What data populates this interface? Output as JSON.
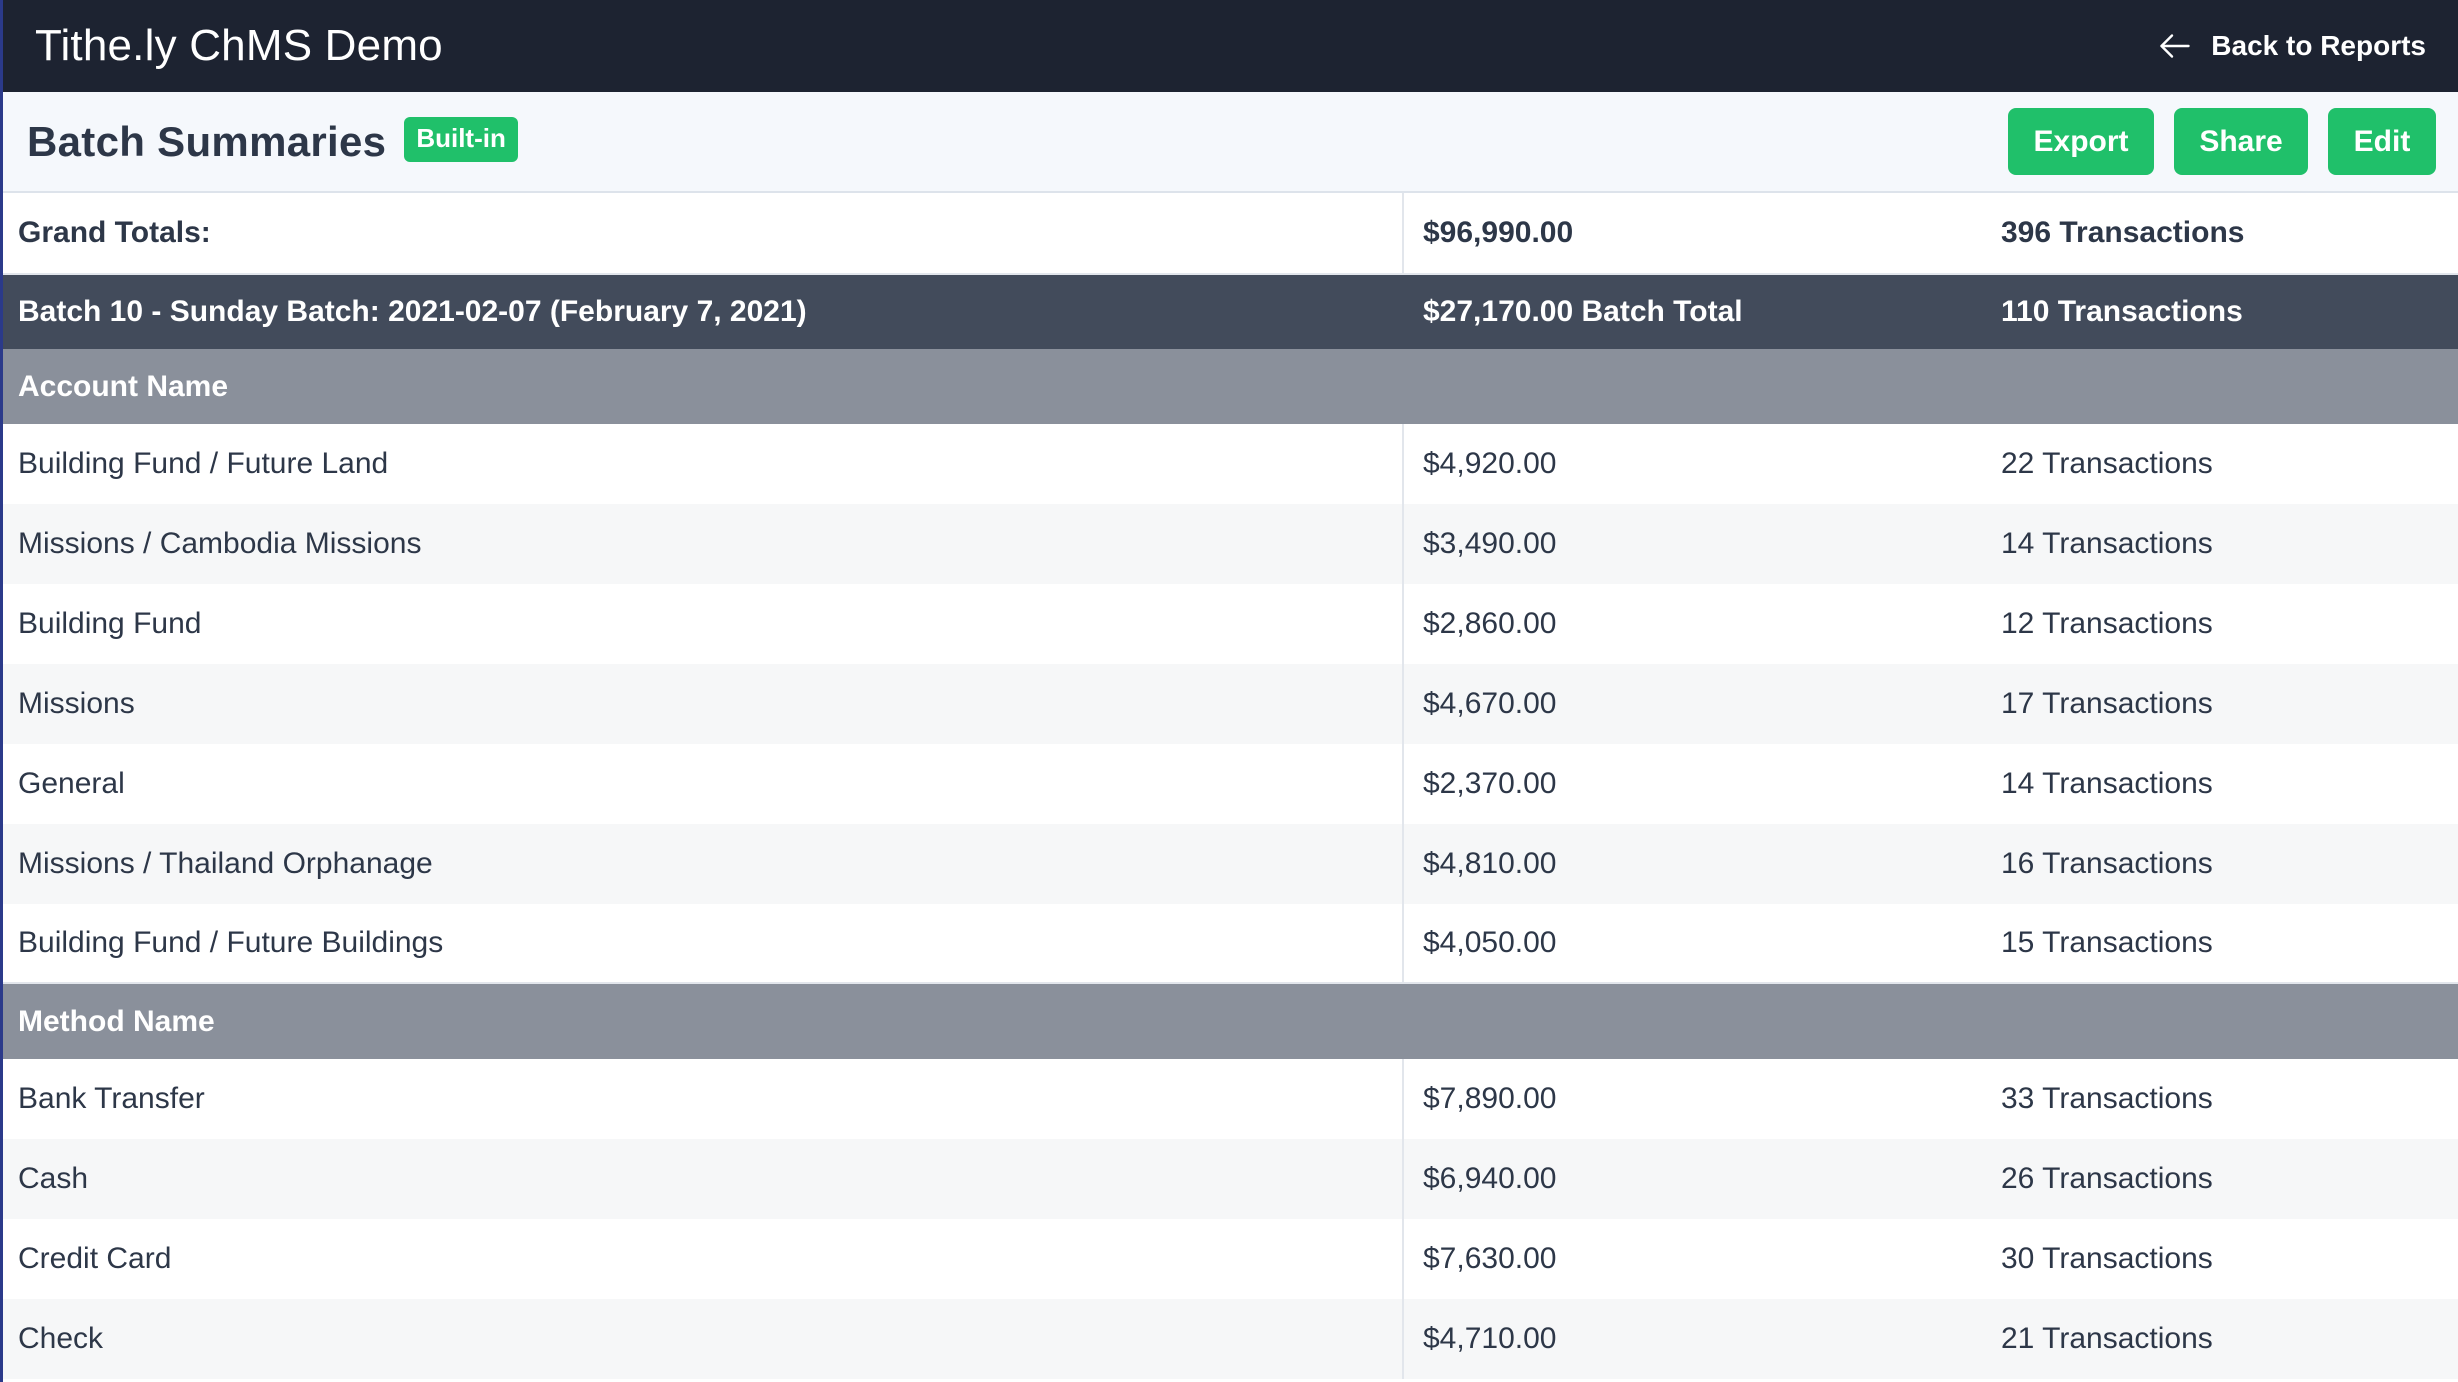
{
  "app": {
    "title": "Tithe.ly ChMS Demo",
    "back_label": "Back to Reports"
  },
  "header": {
    "title": "Batch Summaries",
    "badge": "Built-in",
    "export_label": "Export",
    "share_label": "Share",
    "edit_label": "Edit"
  },
  "grand": {
    "label": "Grand Totals:",
    "amount": "$96,990.00",
    "transactions": "396 Transactions"
  },
  "batch": {
    "label": "Batch 10 - Sunday Batch: 2021-02-07 (February 7, 2021)",
    "amount": "$27,170.00 Batch Total",
    "transactions": "110 Transactions"
  },
  "accounts": {
    "header": "Account Name",
    "rows": [
      {
        "name": "Building Fund / Future Land",
        "amount": "$4,920.00",
        "transactions": "22 Transactions"
      },
      {
        "name": "Missions / Cambodia Missions",
        "amount": "$3,490.00",
        "transactions": "14 Transactions"
      },
      {
        "name": "Building Fund",
        "amount": "$2,860.00",
        "transactions": "12 Transactions"
      },
      {
        "name": "Missions",
        "amount": "$4,670.00",
        "transactions": "17 Transactions"
      },
      {
        "name": "General",
        "amount": "$2,370.00",
        "transactions": "14 Transactions"
      },
      {
        "name": "Missions / Thailand Orphanage",
        "amount": "$4,810.00",
        "transactions": "16 Transactions"
      },
      {
        "name": "Building Fund / Future Buildings",
        "amount": "$4,050.00",
        "transactions": "15 Transactions"
      }
    ]
  },
  "methods": {
    "header": "Method Name",
    "rows": [
      {
        "name": "Bank Transfer",
        "amount": "$7,890.00",
        "transactions": "33 Transactions"
      },
      {
        "name": "Cash",
        "amount": "$6,940.00",
        "transactions": "26 Transactions"
      },
      {
        "name": "Credit Card",
        "amount": "$7,630.00",
        "transactions": "30 Transactions"
      },
      {
        "name": "Check",
        "amount": "$4,710.00",
        "transactions": "21 Transactions"
      }
    ]
  },
  "colors": {
    "topbar": "#1d2331",
    "accent_green": "#20c06a",
    "batch_row": "#424b5b",
    "section_row": "#8a909b"
  }
}
